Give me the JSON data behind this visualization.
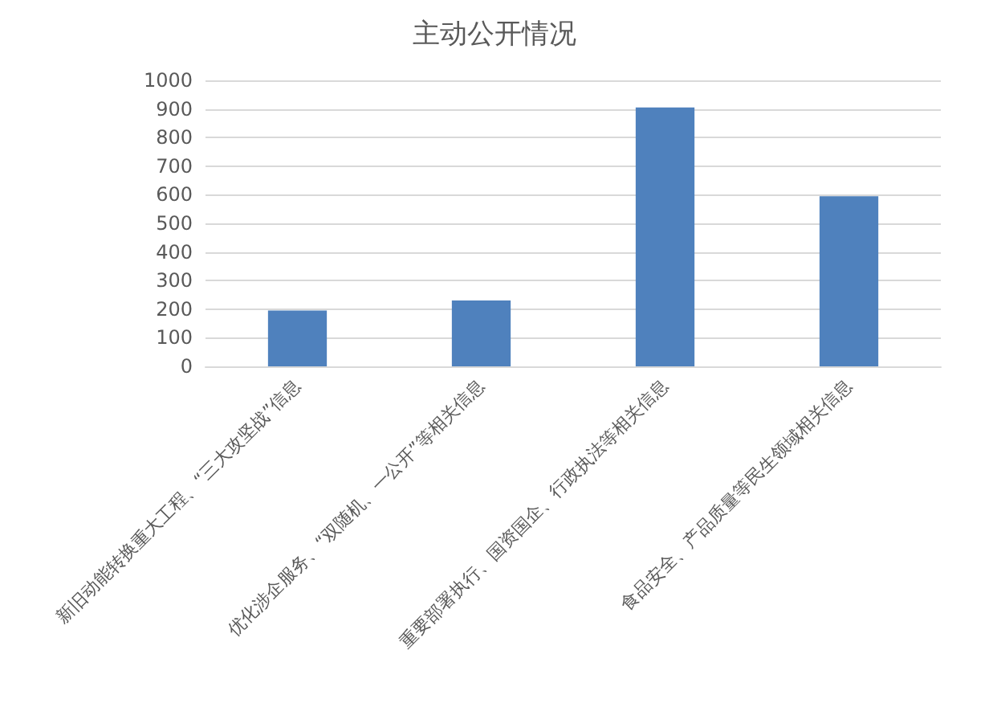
{
  "chart_data": {
    "type": "bar",
    "title": "主动公开情况",
    "categories": [
      "新旧动能转换重大工程、“三大攻坚战”信息",
      "优化涉企服务、“双随机、一公开”等相关信息",
      "重要部署执行、国资国企、行政执法等相关信息",
      "食品安全、产品质量等民生领域相关信息"
    ],
    "values": [
      195,
      230,
      905,
      595
    ],
    "color": "#4f81bd",
    "ylim": [
      0,
      1000
    ],
    "yticks": [
      0,
      100,
      200,
      300,
      400,
      500,
      600,
      700,
      800,
      900,
      1000
    ],
    "grid": "y"
  }
}
